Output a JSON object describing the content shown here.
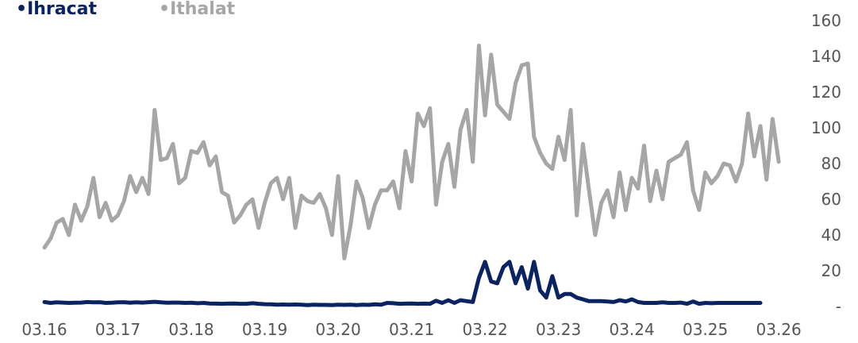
{
  "chart_data": {
    "type": "line",
    "title": "",
    "xlabel": "",
    "ylabel": "",
    "ylim": [
      0,
      160
    ],
    "yticks": [
      0,
      20,
      40,
      60,
      80,
      100,
      120,
      140,
      160
    ],
    "ytick_labels": [
      "-",
      "20",
      "40",
      "60",
      "80",
      "100",
      "120",
      "140",
      "160"
    ],
    "xlim": [
      0,
      120.5
    ],
    "xticks": [
      0,
      12,
      24,
      36,
      48,
      60,
      72,
      84,
      96,
      108,
      120
    ],
    "xtick_labels": [
      "03.16",
      "03.17",
      "03.18",
      "03.19",
      "03.20",
      "03.21",
      "03.22",
      "03.23",
      "03.24",
      "03.25",
      "03.26"
    ],
    "grid": false,
    "legend_position": "top-left",
    "series": [
      {
        "name": "Ihracat",
        "color": "#0a2463",
        "values": [
          2.5,
          2,
          2.3,
          2.2,
          2,
          2.1,
          2.2,
          2.5,
          2.3,
          2.4,
          2,
          2.1,
          2.3,
          2.4,
          2.1,
          2.3,
          2.2,
          2.4,
          2.6,
          2.3,
          2.1,
          2.2,
          2.2,
          2,
          2.1,
          1.8,
          2,
          1.7,
          1.6,
          1.5,
          1.6,
          1.7,
          1.5,
          1.5,
          1.8,
          1.5,
          1.3,
          1.2,
          1,
          1.1,
          1,
          1.1,
          1,
          0.8,
          1,
          0.9,
          0.9,
          0.8,
          1,
          0.9,
          1,
          0.8,
          1,
          0.9,
          1.2,
          1,
          2,
          1.8,
          1.5,
          1.6,
          1.7,
          1.5,
          1.6,
          1.5,
          3.2,
          2,
          3.5,
          2,
          3.5,
          3,
          2.5,
          16,
          25,
          14,
          13,
          22,
          25,
          13,
          22,
          10,
          25,
          9,
          5,
          17,
          5,
          7,
          7,
          5,
          4,
          3,
          3,
          3,
          2.8,
          2.5,
          3.5,
          2.8,
          4,
          2.5,
          2,
          2,
          2,
          2.3,
          2,
          2,
          2.2,
          1.5,
          2.8,
          1.5,
          2,
          1.8,
          2,
          2,
          2,
          2,
          2,
          2,
          2,
          2
        ]
      },
      {
        "name": "Ithalat",
        "color": "#a6a6a6",
        "values": [
          33,
          38,
          47,
          49,
          40,
          57,
          48,
          56,
          72,
          50,
          58,
          48,
          51,
          59,
          73,
          64,
          72,
          63,
          110,
          82,
          83,
          91,
          69,
          72,
          87,
          86,
          92,
          79,
          84,
          64,
          62,
          47,
          51,
          57,
          60,
          44,
          58,
          69,
          72,
          60,
          72,
          44,
          62,
          59,
          58,
          63,
          55,
          40,
          73,
          27,
          45,
          70,
          61,
          44,
          57,
          65,
          65,
          70,
          55,
          87,
          70,
          108,
          101,
          111,
          57,
          81,
          91,
          67,
          99,
          110,
          81,
          146,
          107,
          141,
          113,
          109,
          105,
          125,
          135,
          136,
          95,
          86,
          80,
          77,
          95,
          82,
          110,
          51,
          91,
          65,
          40,
          58,
          65,
          50,
          75,
          54,
          72,
          66,
          90,
          59,
          76,
          60,
          81,
          83,
          85,
          92,
          65,
          54,
          75,
          69,
          73,
          80,
          79,
          70,
          80,
          108,
          84,
          101,
          71,
          105,
          81
        ]
      }
    ]
  }
}
